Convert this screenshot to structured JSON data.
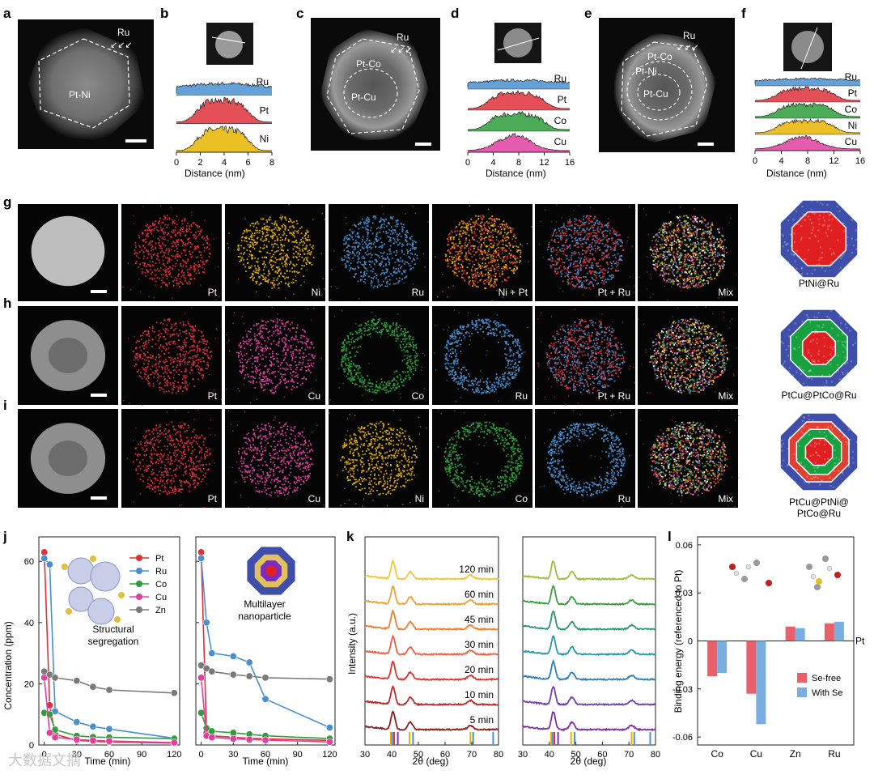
{
  "colors": {
    "pt": "#e0303a",
    "ru": "#4a90d0",
    "ni": "#e8b400",
    "co": "#2e9e3a",
    "cu": "#e040a0",
    "zn": "#7a7a7a",
    "mix": "#f0a030",
    "dark": "#0a0a0a",
    "haadf": "#9a9a9a"
  },
  "panels": {
    "a": "a",
    "b": "b",
    "c": "c",
    "d": "d",
    "e": "e",
    "f": "f",
    "g": "g",
    "h": "h",
    "i": "i",
    "j": "j",
    "k": "k",
    "l": "l"
  },
  "a": {
    "region": "Pt-Ni",
    "shell": "Ru"
  },
  "c": {
    "outer": "Pt-Co",
    "inner": "Pt-Cu",
    "shell": "Ru"
  },
  "e": {
    "outer": "Pt-Co",
    "mid": "Pt-Ni",
    "inner": "Pt-Cu",
    "shell": "Ru"
  },
  "b": {
    "xlabel": "Distance (nm)",
    "ticks": [
      "0",
      "2",
      "4",
      "6",
      "8"
    ],
    "traces": [
      "Ru",
      "Pt",
      "Ni"
    ]
  },
  "d": {
    "xlabel": "Distance (nm)",
    "ticks": [
      "0",
      "4",
      "8",
      "12",
      "16"
    ],
    "traces": [
      "Ru",
      "Pt",
      "Co",
      "Cu"
    ]
  },
  "f": {
    "xlabel": "Distance (nm)",
    "ticks": [
      "0",
      "4",
      "8",
      "12",
      "16"
    ],
    "traces": [
      "Ru",
      "Pt",
      "Co",
      "Ni",
      "Cu"
    ]
  },
  "g": {
    "labels": [
      "",
      "Pt",
      "Ni",
      "Ru",
      "Ni + Pt",
      "Pt + Ru",
      "Mix"
    ],
    "model": "PtNi@Ru"
  },
  "h": {
    "labels": [
      "",
      "Pt",
      "Cu",
      "Co",
      "Ru",
      "Pt + Ru",
      "Mix"
    ],
    "model": "PtCu@PtCo@Ru"
  },
  "i": {
    "labels": [
      "",
      "Pt",
      "Cu",
      "Ni",
      "Co",
      "Ru",
      "Mix"
    ],
    "model_l1": "PtCu@PtNi@",
    "model_l2": "PtCo@Ru"
  },
  "j": {
    "ylabel": "Concentration (ppm)",
    "xlabel": "Time (min)",
    "left_note_l1": "Structural",
    "left_note_l2": "segregation",
    "right_note_l1": "Multilayer",
    "right_note_l2": "nanoparticle",
    "legend": [
      "Pt",
      "Ru",
      "Co",
      "Cu",
      "Zn"
    ],
    "yticks": [
      "0",
      "20",
      "40",
      "60"
    ],
    "xticks": [
      "0",
      "30",
      "60",
      "90",
      "120"
    ]
  },
  "k": {
    "ylabel": "Intensity (a.u.)",
    "xlabel": "2θ (deg)",
    "times": [
      "120 min",
      "60 min",
      "45 min",
      "30 min",
      "20 min",
      "10 min",
      "5 min"
    ],
    "xticks": [
      "30",
      "40",
      "50",
      "60",
      "70",
      "80"
    ]
  },
  "l": {
    "ylabel": "Binding energy (referenced to Pt)",
    "yticks": [
      "0.06",
      "0.03",
      "0",
      "-0.03",
      "-0.06"
    ],
    "ref": "Pt",
    "legend": [
      "Se-free",
      "With Se"
    ]
  },
  "watermark": "大数据文摘",
  "chart_data": [
    {
      "type": "line",
      "panel": "j-left",
      "title": "",
      "xlabel": "Time (min)",
      "ylabel": "Concentration (ppm)",
      "ylim": [
        0,
        68
      ],
      "xlim": [
        -5,
        125
      ],
      "x": [
        0,
        5,
        10,
        30,
        45,
        60,
        120
      ],
      "series": [
        {
          "name": "Pt",
          "values": [
            63,
            13,
            3.5,
            1.5,
            1.2,
            1.0,
            0.6
          ]
        },
        {
          "name": "Ru",
          "values": [
            61,
            59,
            11,
            7.5,
            6,
            5.2,
            2.2
          ]
        },
        {
          "name": "Co",
          "values": [
            10.5,
            10,
            5,
            3,
            2.6,
            2.5,
            2.1
          ]
        },
        {
          "name": "Cu",
          "values": [
            22,
            4,
            2.5,
            1.8,
            1.5,
            1.3,
            0.8
          ]
        },
        {
          "name": "Zn",
          "values": [
            24,
            23,
            22,
            21,
            19,
            18,
            17
          ]
        }
      ]
    },
    {
      "type": "line",
      "panel": "j-right",
      "title": "",
      "xlabel": "Time (min)",
      "ylabel": "",
      "ylim": [
        0,
        68
      ],
      "xlim": [
        -5,
        125
      ],
      "x": [
        0,
        5,
        10,
        30,
        45,
        60,
        120
      ],
      "series": [
        {
          "name": "Pt",
          "values": [
            63,
            4,
            3,
            2.5,
            2.2,
            2,
            1.5
          ]
        },
        {
          "name": "Ru",
          "values": [
            61,
            40,
            30,
            29,
            27,
            15,
            5.7
          ]
        },
        {
          "name": "Co",
          "values": [
            10.5,
            5.5,
            4.5,
            4,
            3.5,
            3,
            2.1
          ]
        },
        {
          "name": "Cu",
          "values": [
            22,
            3,
            2.5,
            2,
            1.8,
            1.6,
            1.0
          ]
        },
        {
          "name": "Zn",
          "values": [
            26,
            25,
            24,
            23,
            22.5,
            22,
            21.5
          ]
        }
      ]
    },
    {
      "type": "line",
      "panel": "k-left",
      "title": "",
      "xlabel": "2θ (deg)",
      "ylabel": "Intensity (a.u.)",
      "xlim": [
        30,
        80
      ],
      "series": [
        {
          "name": "120 min"
        },
        {
          "name": "60 min"
        },
        {
          "name": "45 min"
        },
        {
          "name": "30 min"
        },
        {
          "name": "20 min"
        },
        {
          "name": "10 min"
        },
        {
          "name": "5 min"
        }
      ],
      "peaks_deg": [
        40.5,
        47,
        69.5
      ]
    },
    {
      "type": "line",
      "panel": "k-right",
      "title": "",
      "xlabel": "2θ (deg)",
      "ylabel": "",
      "xlim": [
        30,
        80
      ],
      "series": [
        {
          "name": "120 min"
        },
        {
          "name": "60 min"
        },
        {
          "name": "45 min"
        },
        {
          "name": "30 min"
        },
        {
          "name": "20 min"
        },
        {
          "name": "10 min"
        },
        {
          "name": "5 min"
        }
      ],
      "peaks_deg": [
        41.5,
        48.5,
        71
      ]
    },
    {
      "type": "bar",
      "panel": "l",
      "title": "",
      "categories": [
        "Co",
        "Cu",
        "Zn",
        "Ru"
      ],
      "ylabel": "Binding energy (referenced to Pt)",
      "ylim": [
        -0.065,
        0.065
      ],
      "series": [
        {
          "name": "Se-free",
          "values": [
            -0.022,
            -0.033,
            0.009,
            0.011
          ]
        },
        {
          "name": "With Se",
          "values": [
            -0.02,
            -0.052,
            0.008,
            0.012
          ]
        }
      ]
    }
  ]
}
